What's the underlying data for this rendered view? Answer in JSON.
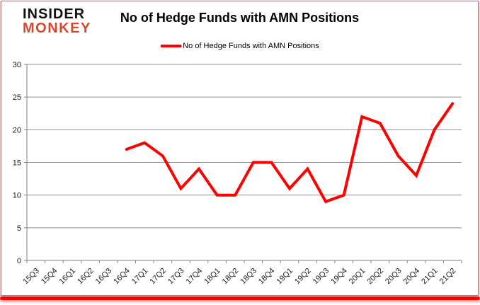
{
  "logo": {
    "line1": "INSIDER",
    "line2": "MONKEY",
    "line1_color": "#111111",
    "line2_color": "#d9482b"
  },
  "header": {
    "title": "No of Hedge Funds with AMN Positions"
  },
  "legend": {
    "label": "No of Hedge Funds with AMN Positions",
    "color": "#ff0000",
    "position": "top"
  },
  "frame": {
    "border_color": "#8a8a8a",
    "bottom_bar_color": "#ff0000",
    "background": "#ffffff"
  },
  "chart_data": {
    "type": "line",
    "title": "No of Hedge Funds with AMN Positions",
    "categories": [
      "15Q3",
      "15Q4",
      "16Q1",
      "16Q2",
      "16Q3",
      "16Q4",
      "17Q1",
      "17Q2",
      "17Q3",
      "17Q4",
      "18Q1",
      "18Q2",
      "18Q3",
      "18Q4",
      "19Q1",
      "19Q2",
      "19Q3",
      "19Q4",
      "20Q1",
      "20Q2",
      "20Q3",
      "20Q4",
      "21Q1",
      "21Q2"
    ],
    "series": [
      {
        "name": "No of Hedge Funds with AMN Positions",
        "values": [
          null,
          null,
          null,
          null,
          null,
          17,
          18,
          16,
          11,
          14,
          10,
          10,
          15,
          15,
          11,
          14,
          9,
          10,
          22,
          21,
          16,
          13,
          20,
          24
        ]
      }
    ],
    "xlabel": "",
    "ylabel": "",
    "ylim": [
      0,
      30
    ],
    "yticks": [
      0,
      5,
      10,
      15,
      20,
      25,
      30
    ],
    "grid": "on",
    "legend_position": "top",
    "line_color": "#ff0000",
    "line_width": 4,
    "grid_color": "#8f8f8f",
    "axis_color": "#808080",
    "tick_label_color": "#1a1a1a",
    "tick_font_size": 11
  }
}
